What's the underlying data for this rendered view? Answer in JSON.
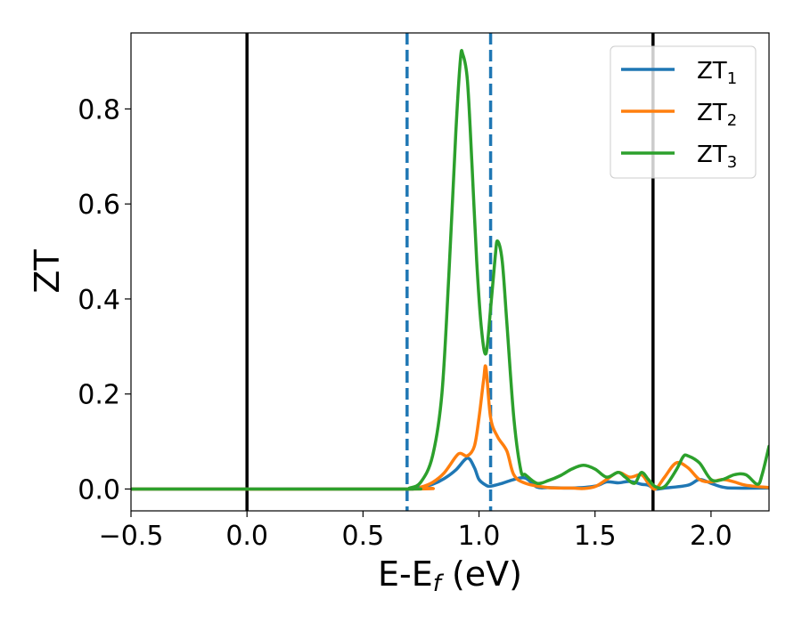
{
  "chart_data": {
    "type": "line",
    "xlabel": {
      "base": "E-E",
      "sub": "f",
      "suffix": " (eV)"
    },
    "ylabel": "ZT",
    "xlim": [
      -0.5,
      2.25
    ],
    "ylim": [
      -0.046,
      0.96
    ],
    "xticks": [
      {
        "value": -0.5,
        "label": "−0.5"
      },
      {
        "value": 0.0,
        "label": "0.0"
      },
      {
        "value": 0.5,
        "label": "0.5"
      },
      {
        "value": 1.0,
        "label": "1.0"
      },
      {
        "value": 1.5,
        "label": "1.5"
      },
      {
        "value": 2.0,
        "label": "2.0"
      }
    ],
    "yticks": [
      {
        "value": 0.0,
        "label": "0.0"
      },
      {
        "value": 0.2,
        "label": "0.2"
      },
      {
        "value": 0.4,
        "label": "0.4"
      },
      {
        "value": 0.6,
        "label": "0.6"
      },
      {
        "value": 0.8,
        "label": "0.8"
      }
    ],
    "grid": false,
    "legend_position": "top-right",
    "vlines": [
      {
        "x": 0.0,
        "color": "#000000",
        "style": "solid"
      },
      {
        "x": 1.75,
        "color": "#000000",
        "style": "solid"
      },
      {
        "x": 0.69,
        "color": "#1f77b4",
        "style": "dashed"
      },
      {
        "x": 1.05,
        "color": "#1f77b4",
        "style": "dashed"
      }
    ],
    "series": [
      {
        "name": "ZT",
        "sub": "1",
        "color": "#1f77b4",
        "points": [
          [
            -0.5,
            0.0
          ],
          [
            0.6,
            0.0
          ],
          [
            0.7,
            0.0
          ],
          [
            0.75,
            0.004
          ],
          [
            0.8,
            0.01
          ],
          [
            0.85,
            0.022
          ],
          [
            0.9,
            0.04
          ],
          [
            0.95,
            0.065
          ],
          [
            0.98,
            0.045
          ],
          [
            1.0,
            0.02
          ],
          [
            1.03,
            0.008
          ],
          [
            1.05,
            0.006
          ],
          [
            1.1,
            0.012
          ],
          [
            1.15,
            0.02
          ],
          [
            1.2,
            0.023
          ],
          [
            1.25,
            0.004
          ],
          [
            1.3,
            0.003
          ],
          [
            1.4,
            0.002
          ],
          [
            1.5,
            0.006
          ],
          [
            1.55,
            0.015
          ],
          [
            1.6,
            0.013
          ],
          [
            1.65,
            0.016
          ],
          [
            1.7,
            0.01
          ],
          [
            1.73,
            0.008
          ],
          [
            1.76,
            0.0
          ],
          [
            1.8,
            0.002
          ],
          [
            1.9,
            0.008
          ],
          [
            1.95,
            0.02
          ],
          [
            2.0,
            0.012
          ],
          [
            2.05,
            0.004
          ],
          [
            2.1,
            0.002
          ],
          [
            2.25,
            0.002
          ]
        ]
      },
      {
        "name": "ZT",
        "sub": "2",
        "color": "#ff7f0e",
        "points": [
          [
            -0.5,
            0.0
          ],
          [
            0.7,
            0.0
          ],
          [
            0.75,
            0.004
          ],
          [
            0.8,
            0.014
          ],
          [
            0.85,
            0.034
          ],
          [
            0.9,
            0.068
          ],
          [
            0.92,
            0.075
          ],
          [
            0.95,
            0.07
          ],
          [
            0.98,
            0.09
          ],
          [
            1.0,
            0.15
          ],
          [
            1.02,
            0.23
          ],
          [
            1.03,
            0.255
          ],
          [
            1.05,
            0.15
          ],
          [
            1.08,
            0.11
          ],
          [
            1.12,
            0.08
          ],
          [
            1.15,
            0.03
          ],
          [
            1.2,
            0.012
          ],
          [
            1.3,
            0.003
          ],
          [
            1.4,
            0.002
          ],
          [
            1.45,
            0.001
          ],
          [
            1.5,
            0.005
          ],
          [
            1.55,
            0.02
          ],
          [
            1.6,
            0.035
          ],
          [
            1.65,
            0.025
          ],
          [
            1.7,
            0.03
          ],
          [
            1.73,
            0.012
          ],
          [
            1.76,
            0.0
          ],
          [
            1.8,
            0.025
          ],
          [
            1.85,
            0.055
          ],
          [
            1.9,
            0.045
          ],
          [
            1.95,
            0.02
          ],
          [
            2.0,
            0.015
          ],
          [
            2.05,
            0.02
          ],
          [
            2.1,
            0.015
          ],
          [
            2.15,
            0.008
          ],
          [
            2.25,
            0.003
          ]
        ]
      },
      {
        "name": "ZT",
        "sub": "3",
        "color": "#2ca02c",
        "points": [
          [
            -0.5,
            0.0
          ],
          [
            0.65,
            0.0
          ],
          [
            0.7,
            0.002
          ],
          [
            0.75,
            0.015
          ],
          [
            0.8,
            0.07
          ],
          [
            0.84,
            0.2
          ],
          [
            0.87,
            0.45
          ],
          [
            0.9,
            0.75
          ],
          [
            0.92,
            0.905
          ],
          [
            0.93,
            0.915
          ],
          [
            0.95,
            0.86
          ],
          [
            0.97,
            0.68
          ],
          [
            0.99,
            0.48
          ],
          [
            1.01,
            0.34
          ],
          [
            1.03,
            0.285
          ],
          [
            1.05,
            0.38
          ],
          [
            1.07,
            0.49
          ],
          [
            1.08,
            0.522
          ],
          [
            1.1,
            0.48
          ],
          [
            1.12,
            0.35
          ],
          [
            1.15,
            0.15
          ],
          [
            1.18,
            0.04
          ],
          [
            1.2,
            0.03
          ],
          [
            1.25,
            0.012
          ],
          [
            1.3,
            0.018
          ],
          [
            1.35,
            0.028
          ],
          [
            1.4,
            0.042
          ],
          [
            1.45,
            0.05
          ],
          [
            1.5,
            0.042
          ],
          [
            1.55,
            0.025
          ],
          [
            1.6,
            0.035
          ],
          [
            1.63,
            0.025
          ],
          [
            1.67,
            0.012
          ],
          [
            1.7,
            0.035
          ],
          [
            1.73,
            0.02
          ],
          [
            1.76,
            0.005
          ],
          [
            1.8,
            0.005
          ],
          [
            1.85,
            0.04
          ],
          [
            1.88,
            0.068
          ],
          [
            1.9,
            0.07
          ],
          [
            1.95,
            0.055
          ],
          [
            2.0,
            0.02
          ],
          [
            2.05,
            0.02
          ],
          [
            2.1,
            0.03
          ],
          [
            2.15,
            0.03
          ],
          [
            2.2,
            0.01
          ],
          [
            2.22,
            0.03
          ],
          [
            2.25,
            0.09
          ]
        ]
      }
    ]
  }
}
